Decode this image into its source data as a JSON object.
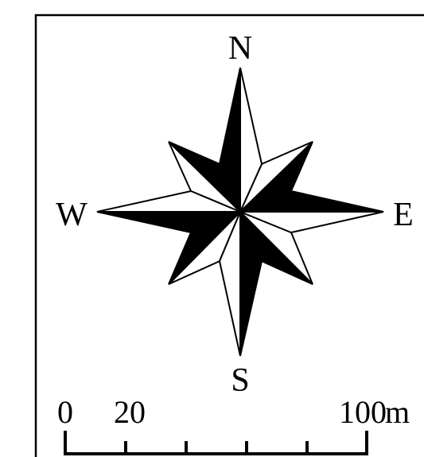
{
  "compass": {
    "north": "N",
    "south": "S",
    "east": "E",
    "west": "W"
  },
  "scale_bar": {
    "labels": [
      "0",
      "20",
      "100"
    ],
    "unit": "m"
  },
  "colors": {
    "ink": "#000000",
    "paper": "#ffffff"
  }
}
